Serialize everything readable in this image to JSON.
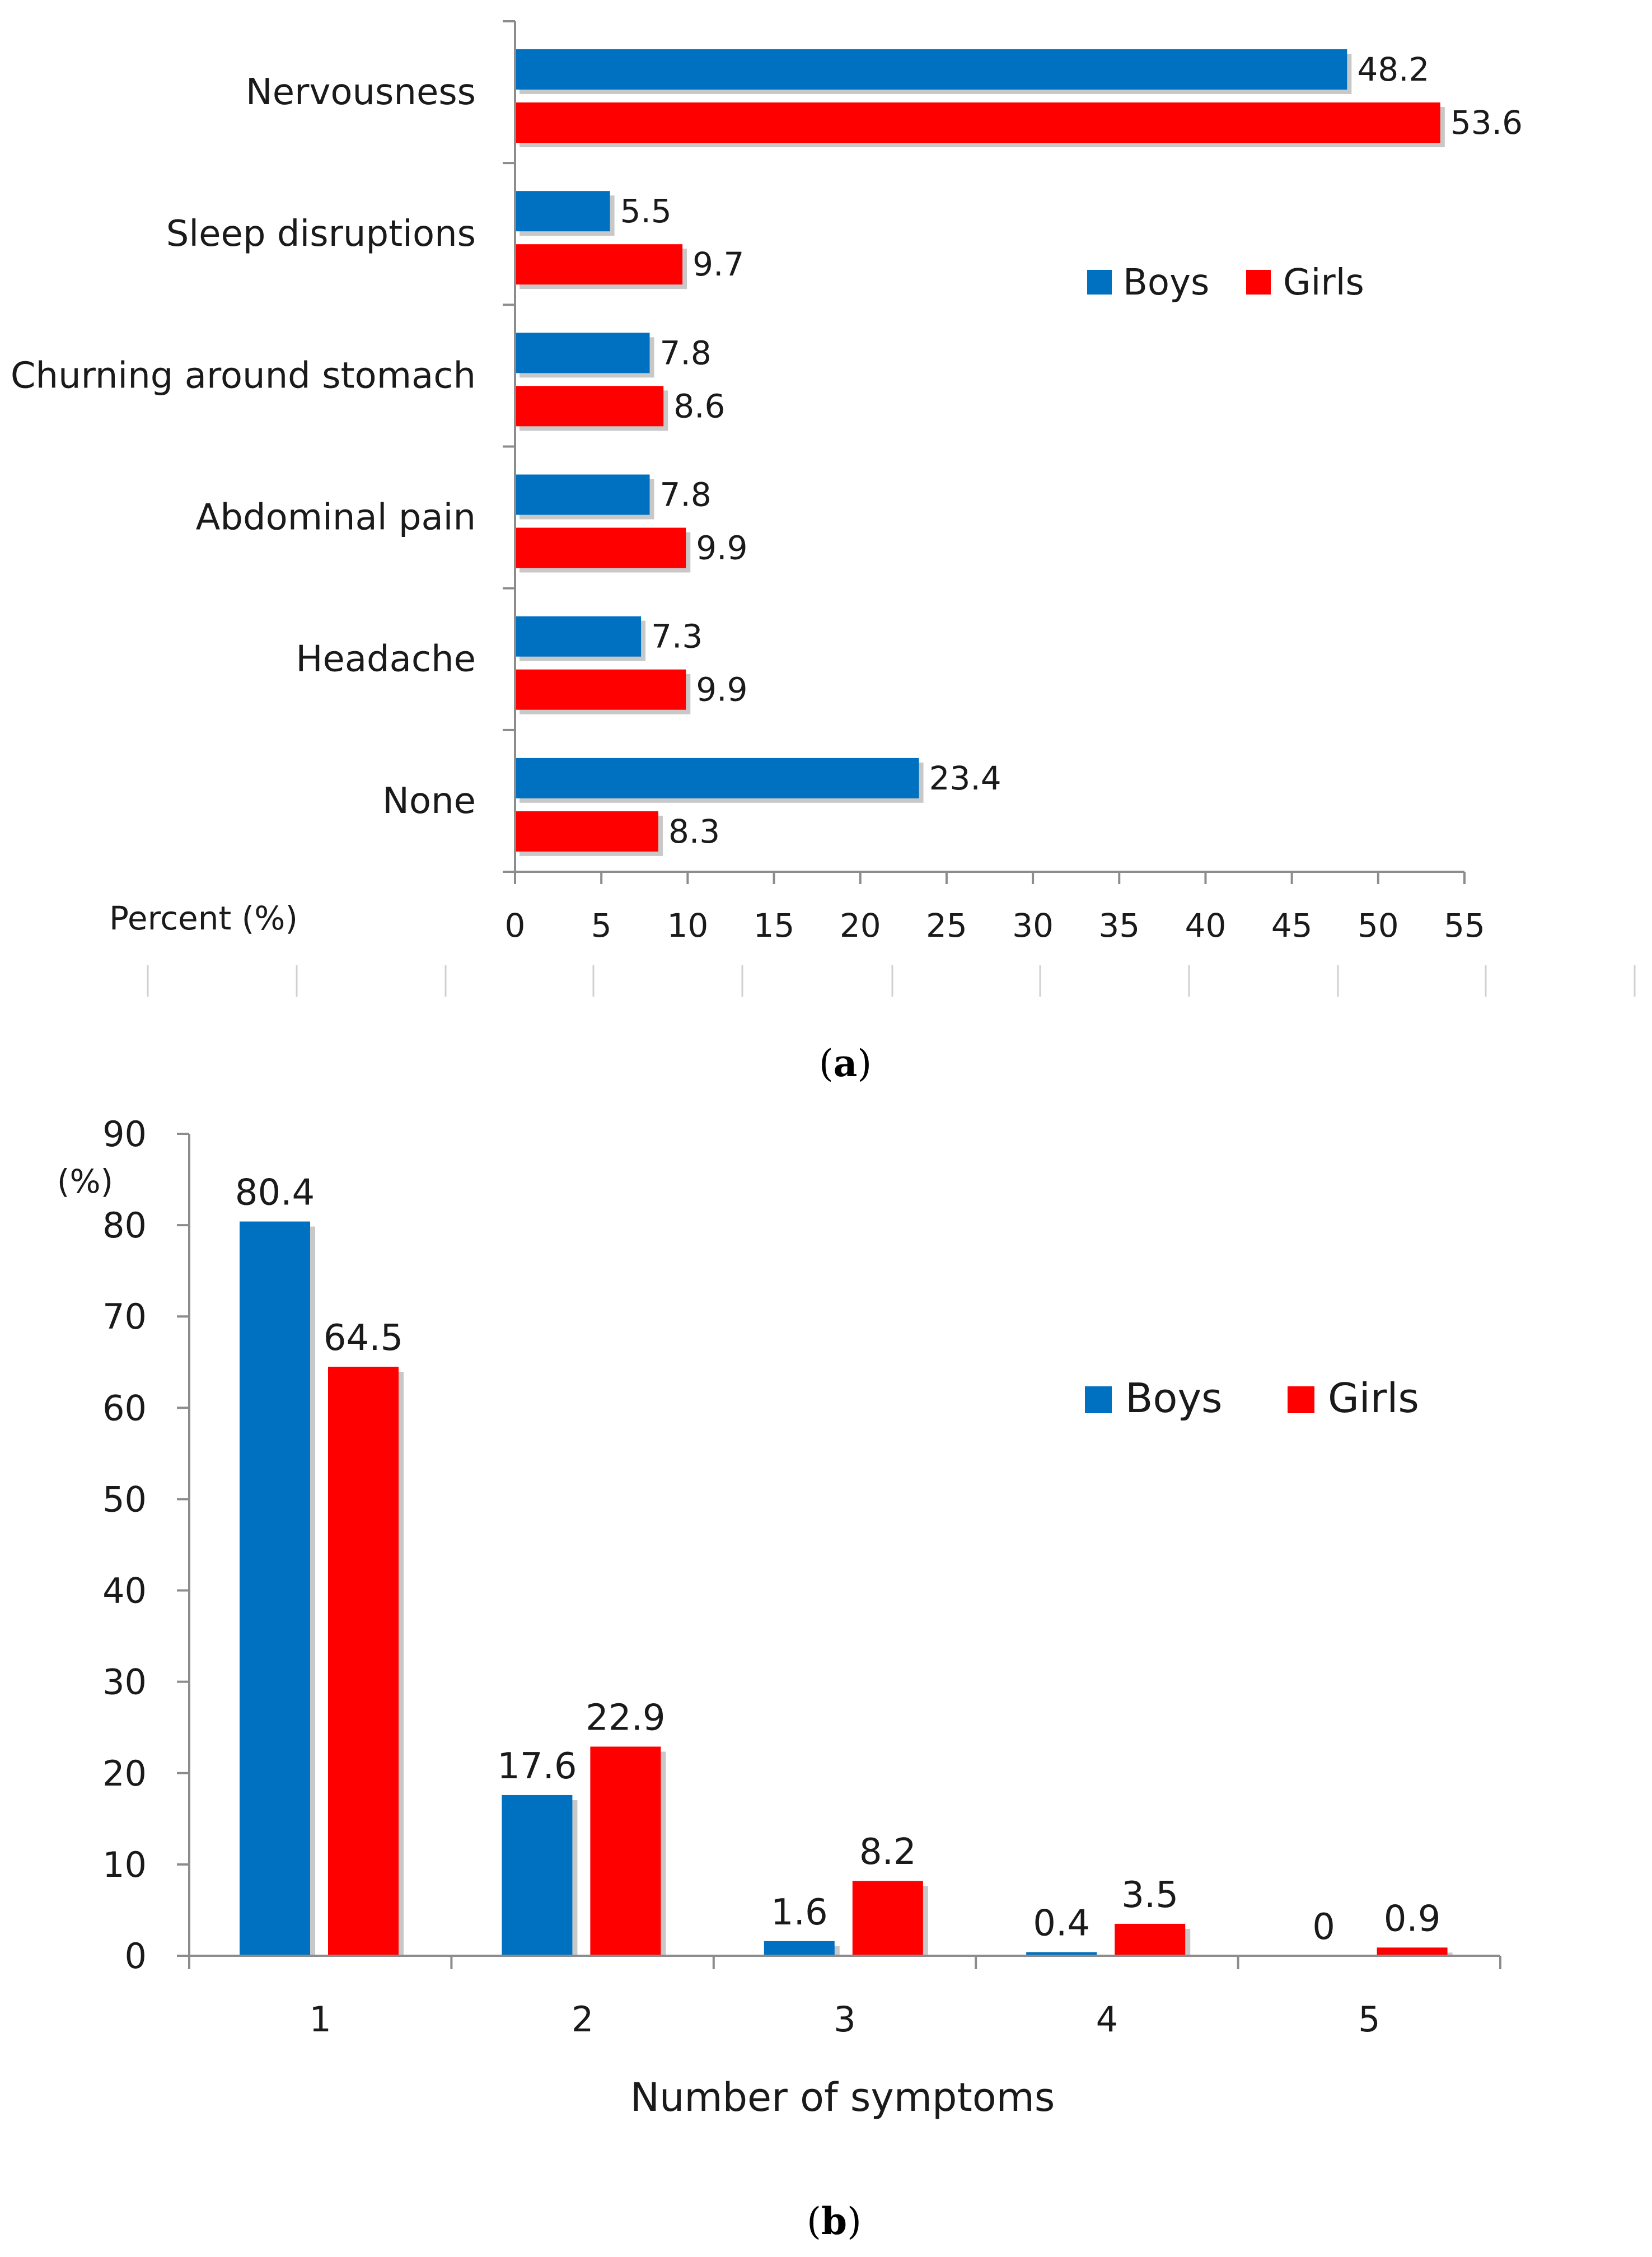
{
  "legend": {
    "boys_label": "Boys",
    "girls_label": "Girls"
  },
  "colors": {
    "boys": "#0070c0",
    "girls": "#ff0000",
    "axis": "#8c8c8c",
    "shadow": "#c8c8c8"
  },
  "chart_data": [
    {
      "panel": "a",
      "type": "bar",
      "orientation": "horizontal",
      "caption": {
        "open": "(",
        "letter": "a",
        "close": ")"
      },
      "categories": [
        "Nervousness",
        "Sleep disruptions",
        "Churning around stomach",
        "Abdominal pain",
        "Headache",
        "None"
      ],
      "series": [
        {
          "name": "Boys",
          "values": [
            48.2,
            5.5,
            7.8,
            7.8,
            7.3,
            23.4
          ]
        },
        {
          "name": "Girls",
          "values": [
            53.6,
            9.7,
            8.6,
            9.9,
            9.9,
            8.3
          ]
        }
      ],
      "xlabel": "Percent (%)",
      "ylabel": "",
      "xlim": [
        0,
        55
      ],
      "xticks": [
        0,
        5,
        10,
        15,
        20,
        25,
        30,
        35,
        40,
        45,
        50,
        55
      ],
      "legend_position": "center-right",
      "grid": false
    },
    {
      "panel": "b",
      "type": "bar",
      "orientation": "vertical",
      "caption": {
        "open": "(",
        "letter": "b",
        "close": ")"
      },
      "categories": [
        "1",
        "2",
        "3",
        "4",
        "5"
      ],
      "series": [
        {
          "name": "Boys",
          "values": [
            80.4,
            17.6,
            1.6,
            0.4,
            0
          ]
        },
        {
          "name": "Girls",
          "values": [
            64.5,
            22.9,
            8.2,
            3.5,
            0.9
          ]
        }
      ],
      "xlabel": "Number of symptoms",
      "ylabel": "(%)",
      "ylim": [
        0,
        90
      ],
      "yticks": [
        0,
        10,
        20,
        30,
        40,
        50,
        60,
        70,
        80,
        90
      ],
      "legend_position": "top-right",
      "grid": false
    }
  ]
}
